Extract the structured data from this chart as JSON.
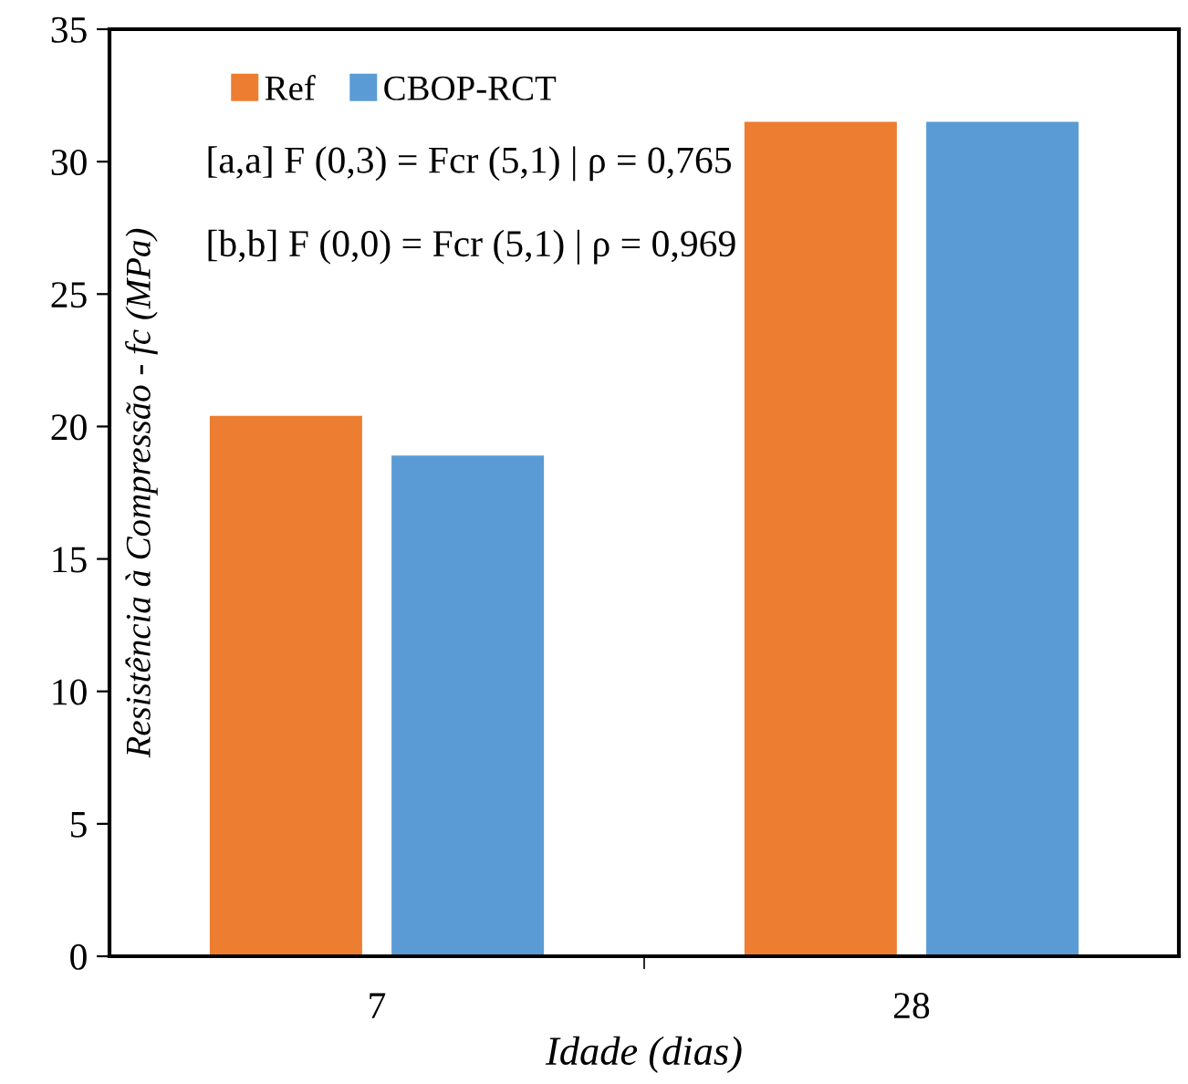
{
  "chart_data": {
    "type": "bar",
    "xlabel": "Idade (dias)",
    "ylabel": "Resistência à Compressão - fc (MPa)",
    "categories": [
      "7",
      "28"
    ],
    "series": [
      {
        "name": "Ref",
        "color": "#ed7d31",
        "values": [
          20.4,
          31.5
        ]
      },
      {
        "name": "CBOP-RCT",
        "color": "#5b9bd5",
        "values": [
          18.9,
          31.5
        ]
      }
    ],
    "ylim": [
      0,
      35
    ],
    "yticks": [
      0,
      5,
      10,
      15,
      20,
      25,
      30,
      35
    ],
    "grid": false,
    "legend": "top left",
    "annotations": [
      "[a,a] F (0,3) = Fcr (5,1) | ρ = 0,765",
      "[b,b] F (0,0) = Fcr (5,1) | ρ = 0,969"
    ]
  }
}
